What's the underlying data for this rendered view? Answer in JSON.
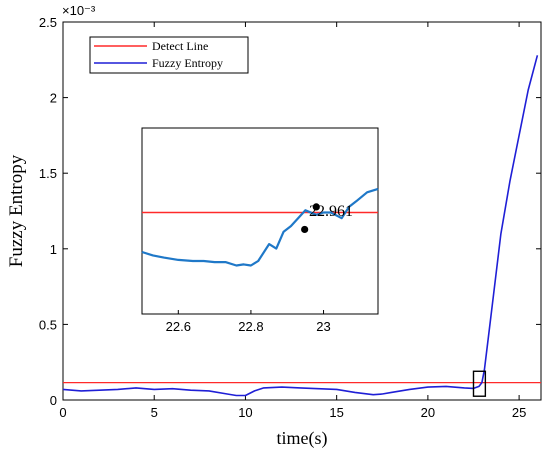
{
  "chart_data": [
    {
      "type": "line",
      "xlabel": "time(s)",
      "ylabel": "Fuzzy Entropy",
      "exponent_label": "×10⁻³",
      "xlim": [
        0,
        26.2
      ],
      "ylim": [
        0,
        2.5
      ],
      "xticks": [
        "0",
        "5",
        "10",
        "15",
        "20",
        "25"
      ],
      "yticks": [
        "0",
        "0.5",
        "1",
        "1.5",
        "2",
        "2.5"
      ],
      "grid": false,
      "legend_position": "top-left",
      "series": [
        {
          "name": "Detect Line",
          "color": "#ff2a2a",
          "x": [
            0,
            26.2
          ],
          "y": [
            0.115,
            0.115
          ]
        },
        {
          "name": "Fuzzy Entropy",
          "color": "#1f1fd6",
          "x": [
            0,
            1,
            2,
            3,
            4,
            5,
            6,
            7,
            8,
            9,
            9.5,
            10,
            10.5,
            11,
            12,
            13,
            14,
            15,
            16,
            17,
            17.5,
            18,
            19,
            20,
            21,
            22,
            22.5,
            22.8,
            22.96,
            23.1,
            23.3,
            23.6,
            24,
            24.5,
            25,
            25.5,
            26
          ],
          "y": [
            0.07,
            0.06,
            0.065,
            0.07,
            0.08,
            0.07,
            0.075,
            0.065,
            0.06,
            0.04,
            0.03,
            0.03,
            0.06,
            0.08,
            0.085,
            0.08,
            0.075,
            0.07,
            0.05,
            0.035,
            0.04,
            0.05,
            0.07,
            0.085,
            0.09,
            0.08,
            0.077,
            0.09,
            0.115,
            0.2,
            0.4,
            0.7,
            1.1,
            1.45,
            1.75,
            2.05,
            2.28
          ]
        }
      ]
    },
    {
      "type": "line",
      "inset": true,
      "xlim": [
        22.5,
        23.15
      ],
      "ylim": [
        0.025,
        0.19
      ],
      "xticks": [
        {
          "value": 22.6,
          "label": "22.6"
        },
        {
          "value": 22.8,
          "label": "22.8"
        },
        {
          "value": 23.0,
          "label": "23"
        }
      ],
      "annotation": {
        "label": "22.961",
        "x": 22.961,
        "y": 0.115
      },
      "markers": [
        {
          "x": 22.948,
          "y": 0.1
        },
        {
          "x": 22.98,
          "y": 0.12
        }
      ],
      "series": [
        {
          "name": "Detect Line",
          "color": "#ff2a2a",
          "x": [
            22.5,
            23.15
          ],
          "y": [
            0.115,
            0.115
          ]
        },
        {
          "name": "Fuzzy Entropy",
          "color": "#1f78c8",
          "x": [
            22.5,
            22.53,
            22.56,
            22.6,
            22.64,
            22.67,
            22.7,
            22.73,
            22.76,
            22.78,
            22.8,
            22.82,
            22.85,
            22.87,
            22.89,
            22.91,
            22.95,
            22.98,
            23.0,
            23.02,
            23.05,
            23.07,
            23.09,
            23.12,
            23.15
          ],
          "y": [
            0.08,
            0.077,
            0.075,
            0.073,
            0.072,
            0.072,
            0.071,
            0.071,
            0.068,
            0.069,
            0.068,
            0.072,
            0.087,
            0.083,
            0.098,
            0.103,
            0.117,
            0.113,
            0.115,
            0.115,
            0.11,
            0.12,
            0.125,
            0.133,
            0.136
          ]
        }
      ]
    }
  ]
}
